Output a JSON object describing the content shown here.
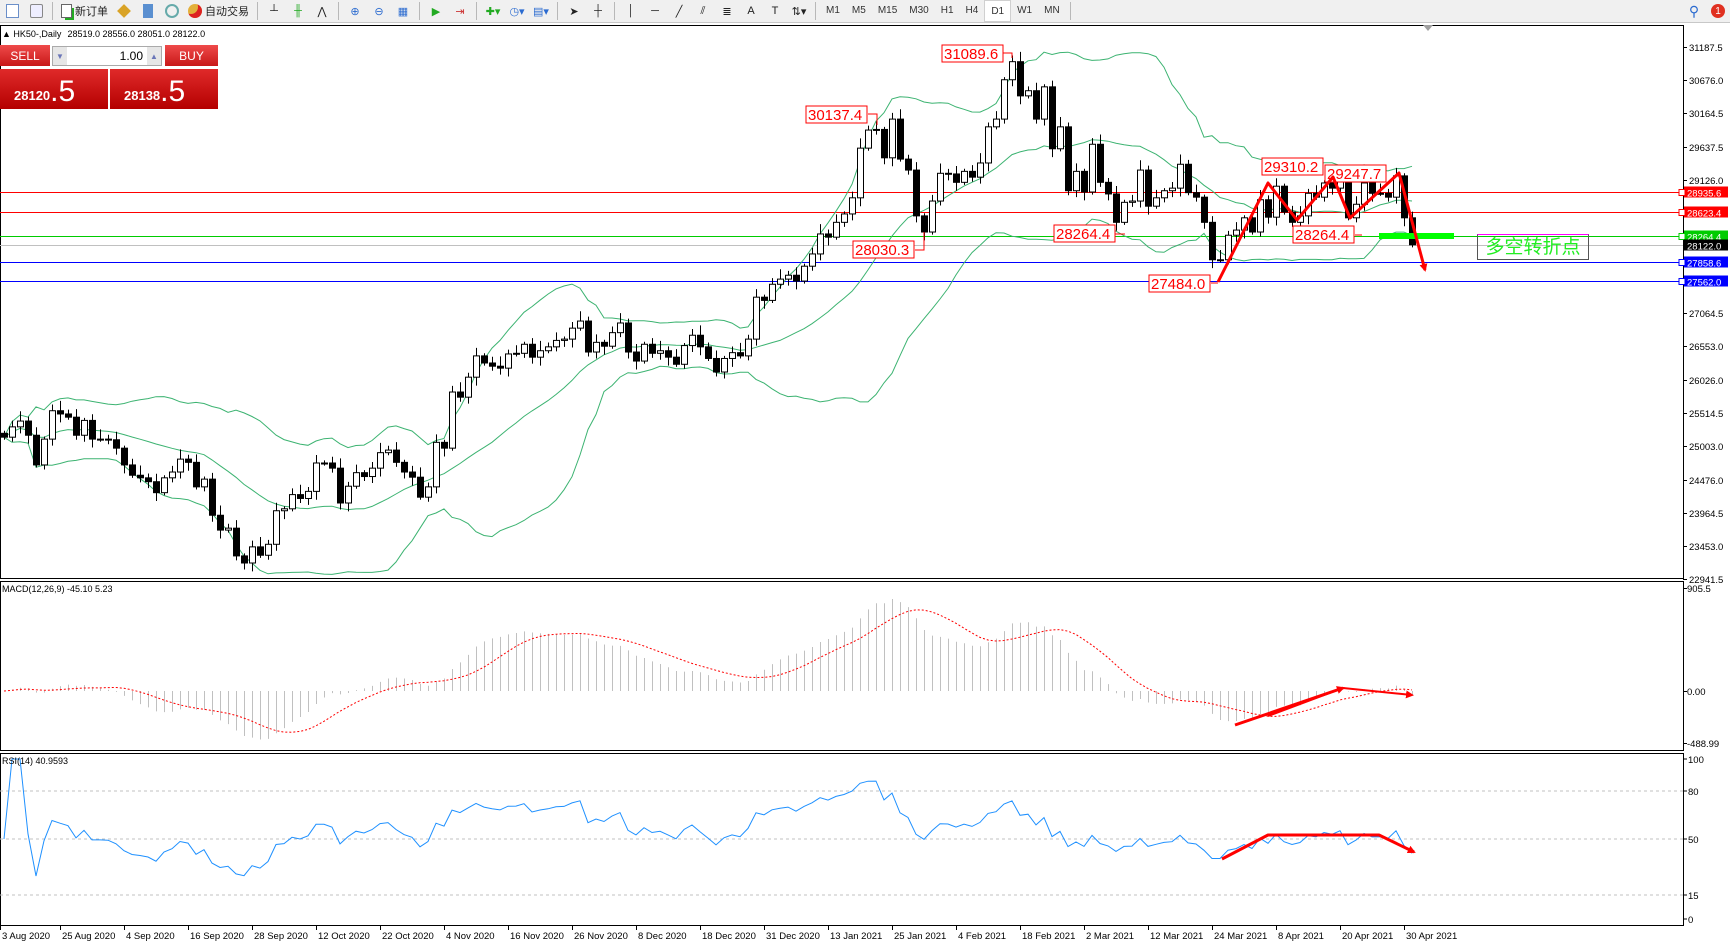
{
  "toolbar": {
    "new_order_label": "新订单",
    "auto_trading_label": "自动交易",
    "timeframes": [
      "M1",
      "M5",
      "M15",
      "M30",
      "H1",
      "H4",
      "D1",
      "W1",
      "MN"
    ],
    "active_timeframe": "D1",
    "notification_count": "1"
  },
  "chart_header": {
    "symbol": "HK50-,Daily",
    "ohlc": "28519.0 28556.0 28051.0 28122.0"
  },
  "one_click": {
    "sell_label": "SELL",
    "buy_label": "BUY",
    "lot": "1.00",
    "sell_price_main": "28120",
    "sell_price_tail": ".5",
    "buy_price_main": "28138",
    "buy_price_tail": ".5"
  },
  "annotation_text": "多空转折点",
  "colors": {
    "bollinger": "#3cb371",
    "resistance": "#ff0000",
    "pivot": "#00cc00",
    "support": "#0000ff",
    "bid_line": "#c0c0c0",
    "arrow": "#ff0000",
    "macd_hist": "#c0c0c0",
    "macd_signal": "#ff0000",
    "rsi": "#1e90ff"
  },
  "chart_data": {
    "type": "candlestick",
    "title": "HK50-,Daily",
    "indicators": [
      "Bollinger Bands",
      "MACD(12,26,9)",
      "RSI(14)"
    ],
    "closes": [
      25140,
      25300,
      25390,
      25170,
      24710,
      25110,
      25550,
      25500,
      25450,
      25170,
      25400,
      25110,
      25110,
      25100,
      24970,
      24710,
      24550,
      24510,
      24450,
      24280,
      24510,
      24600,
      24800,
      24750,
      24370,
      24490,
      23930,
      23700,
      23730,
      23300,
      23190,
      23440,
      23310,
      23480,
      24000,
      24030,
      24250,
      24190,
      24300,
      24740,
      24740,
      24660,
      24120,
      24380,
      24590,
      24530,
      24660,
      24900,
      24940,
      24750,
      24600,
      24520,
      24210,
      24370,
      25060,
      24970,
      25840,
      25760,
      26070,
      26400,
      26290,
      26240,
      26210,
      26430,
      26440,
      26580,
      26380,
      26480,
      26540,
      26640,
      26660,
      26830,
      26940,
      26460,
      26610,
      26550,
      26760,
      26910,
      26460,
      26320,
      26580,
      26440,
      26480,
      26380,
      26270,
      26560,
      26720,
      26540,
      26360,
      26150,
      26360,
      26450,
      26400,
      26660,
      27310,
      27260,
      27510,
      27590,
      27650,
      27560,
      27790,
      27980,
      28290,
      28240,
      28470,
      28600,
      28850,
      29620,
      29900,
      29910,
      29470,
      30070,
      29450,
      29280,
      28570,
      28320,
      28800,
      29230,
      29220,
      29090,
      29260,
      29170,
      29390,
      29950,
      30070,
      30680,
      30960,
      30430,
      30510,
      30070,
      30570,
      29610,
      29950,
      28960,
      29260,
      28940,
      29680,
      29090,
      28910,
      28470,
      28780,
      28800,
      29280,
      28720,
      28850,
      28960,
      29000,
      29370,
      28930,
      28860,
      28470,
      27890,
      27890,
      28270,
      28350,
      28540,
      28320,
      28820,
      28550,
      29030,
      28630,
      28470,
      28570,
      28920,
      28860,
      29080,
      29000,
      29170,
      28540,
      28750,
      29080,
      28920,
      28920,
      28860,
      29190,
      28540,
      28122
    ],
    "price_axis": {
      "ticks": [
        "31187.5",
        "30676.0",
        "30164.5",
        "29637.5",
        "29126.0",
        "27064.5",
        "26553.0",
        "26026.0",
        "25514.5",
        "25003.0",
        "24476.0",
        "23964.5",
        "23453.0",
        "22941.5"
      ],
      "range": [
        22941.5,
        31187.5
      ]
    },
    "levels": [
      {
        "label": "28935.6",
        "kind": "resistance"
      },
      {
        "label": "28623.4",
        "kind": "resistance"
      },
      {
        "label": "28264.4",
        "kind": "pivot"
      },
      {
        "label": "28122.0",
        "kind": "bid"
      },
      {
        "label": "27858.6",
        "kind": "support"
      },
      {
        "label": "27562.0",
        "kind": "support"
      }
    ],
    "price_labels": [
      "31089.6",
      "30137.4",
      "28030.3",
      "28264.4",
      "27484.0",
      "29310.2",
      "29247.7",
      "28264.4"
    ],
    "date_axis": [
      {
        "label": "3 Aug 2020",
        "bar": -1
      },
      {
        "label": "25 Aug 2020",
        "bar": 7
      },
      {
        "label": "4 Sep 2020",
        "bar": 15
      },
      {
        "label": "16 Sep 2020",
        "bar": 23
      },
      {
        "label": "28 Sep 2020",
        "bar": 31
      },
      {
        "label": "12 Oct 2020",
        "bar": 39
      },
      {
        "label": "22 Oct 2020",
        "bar": 47
      },
      {
        "label": "4 Nov 2020",
        "bar": 55
      },
      {
        "label": "16 Nov 2020",
        "bar": 63
      },
      {
        "label": "26 Nov 2020",
        "bar": 71
      },
      {
        "label": "8 Dec 2020",
        "bar": 79
      },
      {
        "label": "18 Dec 2020",
        "bar": 87
      },
      {
        "label": "31 Dec 2020",
        "bar": 95
      },
      {
        "label": "13 Jan 2021",
        "bar": 103
      },
      {
        "label": "25 Jan 2021",
        "bar": 111
      },
      {
        "label": "4 Feb 2021",
        "bar": 119
      },
      {
        "label": "18 Feb 2021",
        "bar": 127
      },
      {
        "label": "2 Mar 2021",
        "bar": 135
      },
      {
        "label": "12 Mar 2021",
        "bar": 143
      },
      {
        "label": "24 Mar 2021",
        "bar": 151
      },
      {
        "label": "8 Apr 2021",
        "bar": 159
      },
      {
        "label": "20 Apr 2021",
        "bar": 167
      },
      {
        "label": "30 Apr 2021",
        "bar": 175
      }
    ],
    "macd": {
      "header": "MACD(12,26,9) -45.10 5.23",
      "ticks": [
        "905.5",
        "0.00",
        "-488.99"
      ],
      "range": [
        -488.99,
        905.5
      ]
    },
    "rsi": {
      "header": "RSI(14) 40.9593",
      "ticks": [
        "100",
        "80",
        "50",
        "15",
        "0"
      ],
      "levels": [
        80,
        50,
        15
      ]
    }
  }
}
